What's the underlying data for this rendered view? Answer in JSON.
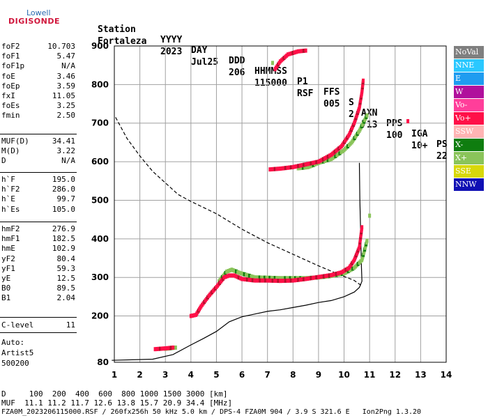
{
  "logo": {
    "line1": "Lowell",
    "line2": "DIGISONDE"
  },
  "header": {
    "labels": [
      "Station",
      "YYYY",
      "DAY",
      "DDD",
      "HHMMSS",
      "P1",
      "FFS",
      "S",
      "AXN",
      "PPS",
      "IGA",
      "PS"
    ],
    "values": [
      "Fortaleza",
      "2023",
      "Jul25",
      "206",
      "115000",
      "RSF",
      "005",
      "2",
      "713",
      "100",
      "10+",
      "22"
    ]
  },
  "params_group1": [
    {
      "k": "foF2",
      "v": "10.703"
    },
    {
      "k": "foF1",
      "v": "5.47"
    },
    {
      "k": "foF1p",
      "v": "N/A"
    },
    {
      "k": "foE",
      "v": "3.46"
    },
    {
      "k": "foEp",
      "v": "3.59"
    },
    {
      "k": "fxI",
      "v": "11.05"
    },
    {
      "k": "foEs",
      "v": "3.25"
    },
    {
      "k": "fmin",
      "v": "2.50"
    }
  ],
  "params_group2": [
    {
      "k": "MUF(D)",
      "v": "34.41"
    },
    {
      "k": "M(D)",
      "v": "3.22"
    },
    {
      "k": "D",
      "v": "N/A"
    }
  ],
  "params_group3": [
    {
      "k": "h`F",
      "v": "195.0"
    },
    {
      "k": "h`F2",
      "v": "286.0"
    },
    {
      "k": "h`E",
      "v": "99.7"
    },
    {
      "k": "h`Es",
      "v": "105.0"
    }
  ],
  "params_group4": [
    {
      "k": "hmF2",
      "v": "276.9"
    },
    {
      "k": "hmF1",
      "v": "182.5"
    },
    {
      "k": "hmE",
      "v": "102.9"
    },
    {
      "k": "yF2",
      "v": "80.4"
    },
    {
      "k": "yF1",
      "v": "59.3"
    },
    {
      "k": "yE",
      "v": "12.5"
    },
    {
      "k": "B0",
      "v": "89.5"
    },
    {
      "k": "B1",
      "v": "2.04"
    }
  ],
  "params_group5": [
    {
      "k": "C-level",
      "v": "11"
    }
  ],
  "autoscale": {
    "line1": "Auto:",
    "line2": "Artist5",
    "line3": "500200"
  },
  "legend": [
    {
      "label": "NoVal",
      "color": "#7f7f7f"
    },
    {
      "label": "NNE",
      "color": "#2ac8ff"
    },
    {
      "label": "E",
      "color": "#1f9cf0"
    },
    {
      "label": "W",
      "color": "#b0109c"
    },
    {
      "label": "Vo-",
      "color": "#ff3e9a"
    },
    {
      "label": "Vo+",
      "color": "#ff1048"
    },
    {
      "label": "SSW",
      "color": "#ffb4b4"
    },
    {
      "label": "X-",
      "color": "#0f7d0f"
    },
    {
      "label": "X+",
      "color": "#8ac45a"
    },
    {
      "label": "SSE",
      "color": "#d8d80a"
    },
    {
      "label": "NNW",
      "color": "#1010b4"
    }
  ],
  "footer": {
    "distance": "D     100  200  400  600  800 1000 1500 3000 [km]",
    "muf": "MUF  11.1 11.2 11.7 12.6 13.8 15.7 20.9 34.4 [MHz]",
    "file": "FZA0M_2023206115000.RSF / 260fx256h 50 kHz 5.0 km / DPS-4 FZA0M 904 / 3.9 S 321.6 E   Ion2Png 1.3.20"
  },
  "chart_data": {
    "type": "scatter",
    "xlim": [
      1,
      14
    ],
    "ylim": [
      80,
      900
    ],
    "xticks": [
      1,
      2,
      3,
      4,
      5,
      6,
      7,
      8,
      9,
      10,
      11,
      12,
      13,
      14
    ],
    "yticks": [
      80,
      200,
      300,
      400,
      500,
      600,
      700,
      800,
      900
    ],
    "grid": true,
    "colors": {
      "o_mode": "#ff1048",
      "o_mode_dark": "#b4102c",
      "x_mode": "#8ac45a",
      "x_mode_dark": "#0f7d0f",
      "profile": "#000000"
    },
    "o_trace": [
      [
        2.6,
        114
      ],
      [
        3.0,
        116
      ],
      [
        3.3,
        118
      ],
      [
        4.0,
        200
      ],
      [
        4.2,
        203
      ],
      [
        4.4,
        225
      ],
      [
        4.7,
        252
      ],
      [
        5.0,
        275
      ],
      [
        5.3,
        300
      ],
      [
        5.5,
        305
      ],
      [
        5.7,
        305
      ],
      [
        6.0,
        296
      ],
      [
        6.5,
        292
      ],
      [
        7.0,
        292
      ],
      [
        7.5,
        291
      ],
      [
        8.0,
        292
      ],
      [
        8.5,
        296
      ],
      [
        9.0,
        301
      ],
      [
        9.5,
        306
      ],
      [
        9.9,
        313
      ],
      [
        10.2,
        325
      ],
      [
        10.4,
        345
      ],
      [
        10.6,
        378
      ],
      [
        10.7,
        430
      ]
    ],
    "x_trace": [
      [
        3.0,
        115
      ],
      [
        3.4,
        118
      ],
      [
        5.1,
        290
      ],
      [
        5.4,
        315
      ],
      [
        5.6,
        320
      ],
      [
        5.9,
        312
      ],
      [
        6.5,
        300
      ],
      [
        7.5,
        298
      ],
      [
        8.5,
        298
      ],
      [
        9.0,
        300
      ],
      [
        9.5,
        304
      ],
      [
        10.0,
        310
      ],
      [
        10.4,
        325
      ],
      [
        10.7,
        345
      ],
      [
        10.9,
        395
      ],
      [
        11.0,
        460
      ]
    ],
    "o_upper": [
      [
        7.1,
        580
      ],
      [
        7.5,
        582
      ],
      [
        8.0,
        586
      ],
      [
        8.5,
        593
      ],
      [
        9.0,
        600
      ],
      [
        9.5,
        618
      ],
      [
        9.9,
        640
      ],
      [
        10.2,
        670
      ],
      [
        10.4,
        700
      ],
      [
        10.6,
        740
      ],
      [
        10.7,
        780
      ],
      [
        10.75,
        810
      ],
      [
        7.3,
        840
      ],
      [
        7.5,
        860
      ],
      [
        7.8,
        878
      ],
      [
        8.2,
        886
      ],
      [
        8.5,
        888
      ],
      [
        12.5,
        705
      ]
    ],
    "x_upper": [
      [
        8.2,
        583
      ],
      [
        8.6,
        586
      ],
      [
        9.0,
        597
      ],
      [
        9.5,
        607
      ],
      [
        10.0,
        630
      ],
      [
        10.3,
        650
      ],
      [
        10.6,
        680
      ],
      [
        10.9,
        720
      ],
      [
        7.2,
        856
      ]
    ],
    "profile_solid": [
      [
        0.9,
        85
      ],
      [
        2.5,
        88
      ],
      [
        3.3,
        100
      ],
      [
        4.0,
        125
      ],
      [
        4.5,
        142
      ],
      [
        5.0,
        160
      ],
      [
        5.5,
        185
      ],
      [
        6.0,
        198
      ],
      [
        6.5,
        205
      ],
      [
        7.0,
        212
      ],
      [
        7.5,
        216
      ],
      [
        8.0,
        222
      ],
      [
        8.5,
        228
      ],
      [
        9.0,
        235
      ],
      [
        9.5,
        240
      ],
      [
        10.0,
        250
      ],
      [
        10.4,
        262
      ],
      [
        10.6,
        274
      ],
      [
        10.7,
        290
      ],
      [
        10.68,
        330
      ],
      [
        10.65,
        420
      ],
      [
        10.62,
        500
      ],
      [
        10.6,
        597
      ]
    ],
    "profile_dashed": [
      [
        1.05,
        715
      ],
      [
        1.5,
        660
      ],
      [
        2.0,
        615
      ],
      [
        2.5,
        575
      ],
      [
        3.0,
        545
      ],
      [
        3.5,
        515
      ],
      [
        4.0,
        497
      ],
      [
        5.0,
        465
      ],
      [
        6.0,
        425
      ],
      [
        7.0,
        390
      ],
      [
        8.0,
        360
      ],
      [
        9.0,
        330
      ],
      [
        9.8,
        308
      ],
      [
        10.4,
        292
      ],
      [
        10.7,
        278
      ]
    ]
  }
}
